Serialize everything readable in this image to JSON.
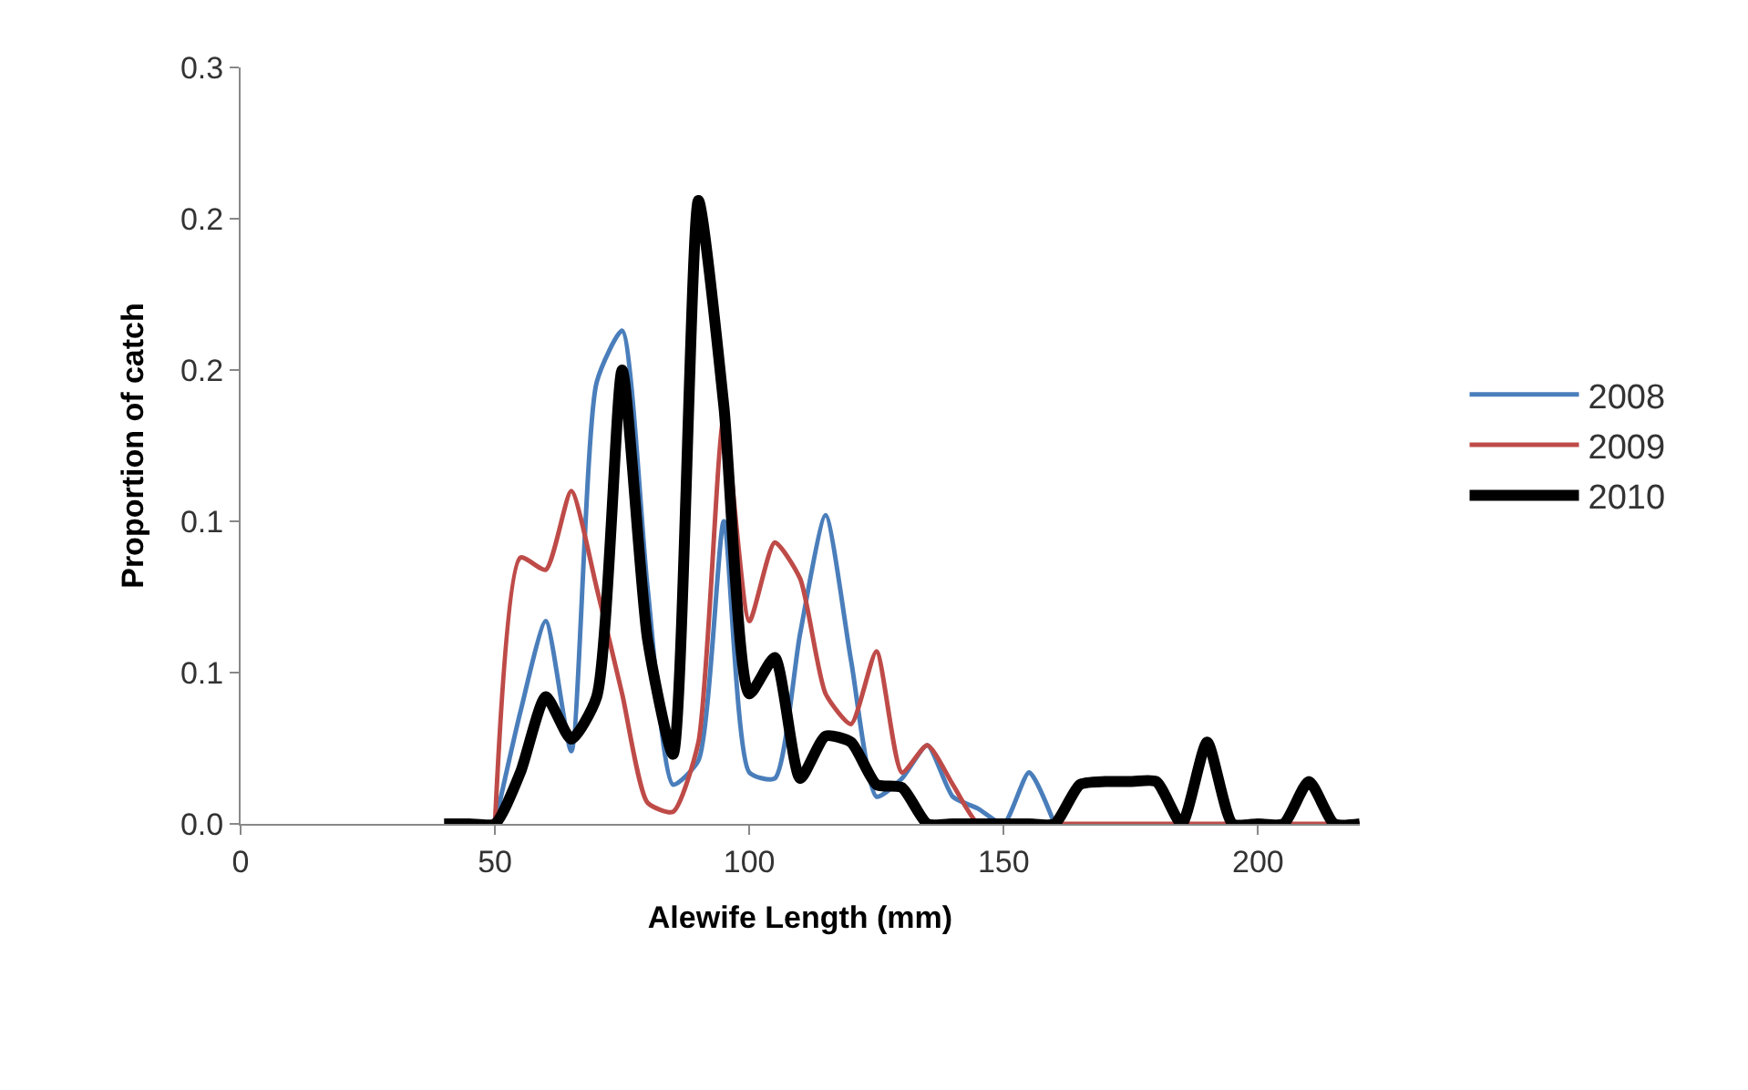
{
  "chart_data": {
    "type": "line",
    "xlabel": "Alewife Length (mm)",
    "ylabel": "Proportion of catch",
    "x": [
      40,
      45,
      50,
      55,
      60,
      65,
      70,
      75,
      80,
      85,
      90,
      95,
      100,
      105,
      110,
      115,
      120,
      125,
      130,
      135,
      140,
      145,
      150,
      155,
      160,
      165,
      170,
      175,
      180,
      185,
      190,
      195,
      200,
      205,
      210,
      215,
      220
    ],
    "series": [
      {
        "name": "2008",
        "color": "#4a7ebb",
        "values": [
          null,
          null,
          0,
          0.037,
          0.067,
          0.024,
          0.146,
          0.163,
          0.078,
          0.013,
          0.021,
          0.1,
          0.017,
          0.015,
          0.063,
          0.102,
          0.054,
          0.009,
          0.015,
          0.026,
          0.009,
          0.005,
          0,
          0.017,
          0,
          null,
          null,
          null,
          null,
          null,
          null,
          null,
          null,
          null,
          null,
          null,
          null
        ]
      },
      {
        "name": "2009",
        "color": "#be4b48",
        "values": [
          null,
          null,
          0,
          0.088,
          0.084,
          0.11,
          0.078,
          0.043,
          0.007,
          0.004,
          0.027,
          0.134,
          0.067,
          0.093,
          0.081,
          0.043,
          0.033,
          0.057,
          0.017,
          0.026,
          0.013,
          0,
          0,
          0,
          0,
          0,
          0,
          0,
          0,
          0,
          0,
          0,
          0,
          0,
          0,
          0,
          0
        ]
      },
      {
        "name": "2010",
        "color": "#000000",
        "values": [
          0,
          0,
          0,
          0.017,
          0.042,
          0.028,
          0.042,
          0.15,
          0.061,
          0.023,
          0.206,
          0.138,
          0.043,
          0.055,
          0.015,
          0.029,
          0.027,
          0.013,
          0.012,
          0,
          0,
          0,
          0,
          0,
          0,
          0.013,
          0.014,
          0.014,
          0.014,
          0,
          0.027,
          0,
          0,
          0,
          0.014,
          0,
          0
        ]
      }
    ],
    "xlim": [
      0,
      220
    ],
    "xticks": [
      0,
      50,
      100,
      150,
      200
    ],
    "ylim": [
      0,
      0.25
    ],
    "yticks": [
      {
        "value": 0,
        "label": "0.0"
      },
      {
        "value": 0.05,
        "label": "0.1"
      },
      {
        "value": 0.1,
        "label": "0.1"
      },
      {
        "value": 0.15,
        "label": "0.2"
      },
      {
        "value": 0.2,
        "label": "0.2"
      },
      {
        "value": 0.25,
        "label": "0.3"
      }
    ],
    "legend": "right",
    "marker": "none",
    "line_style": "solid"
  }
}
